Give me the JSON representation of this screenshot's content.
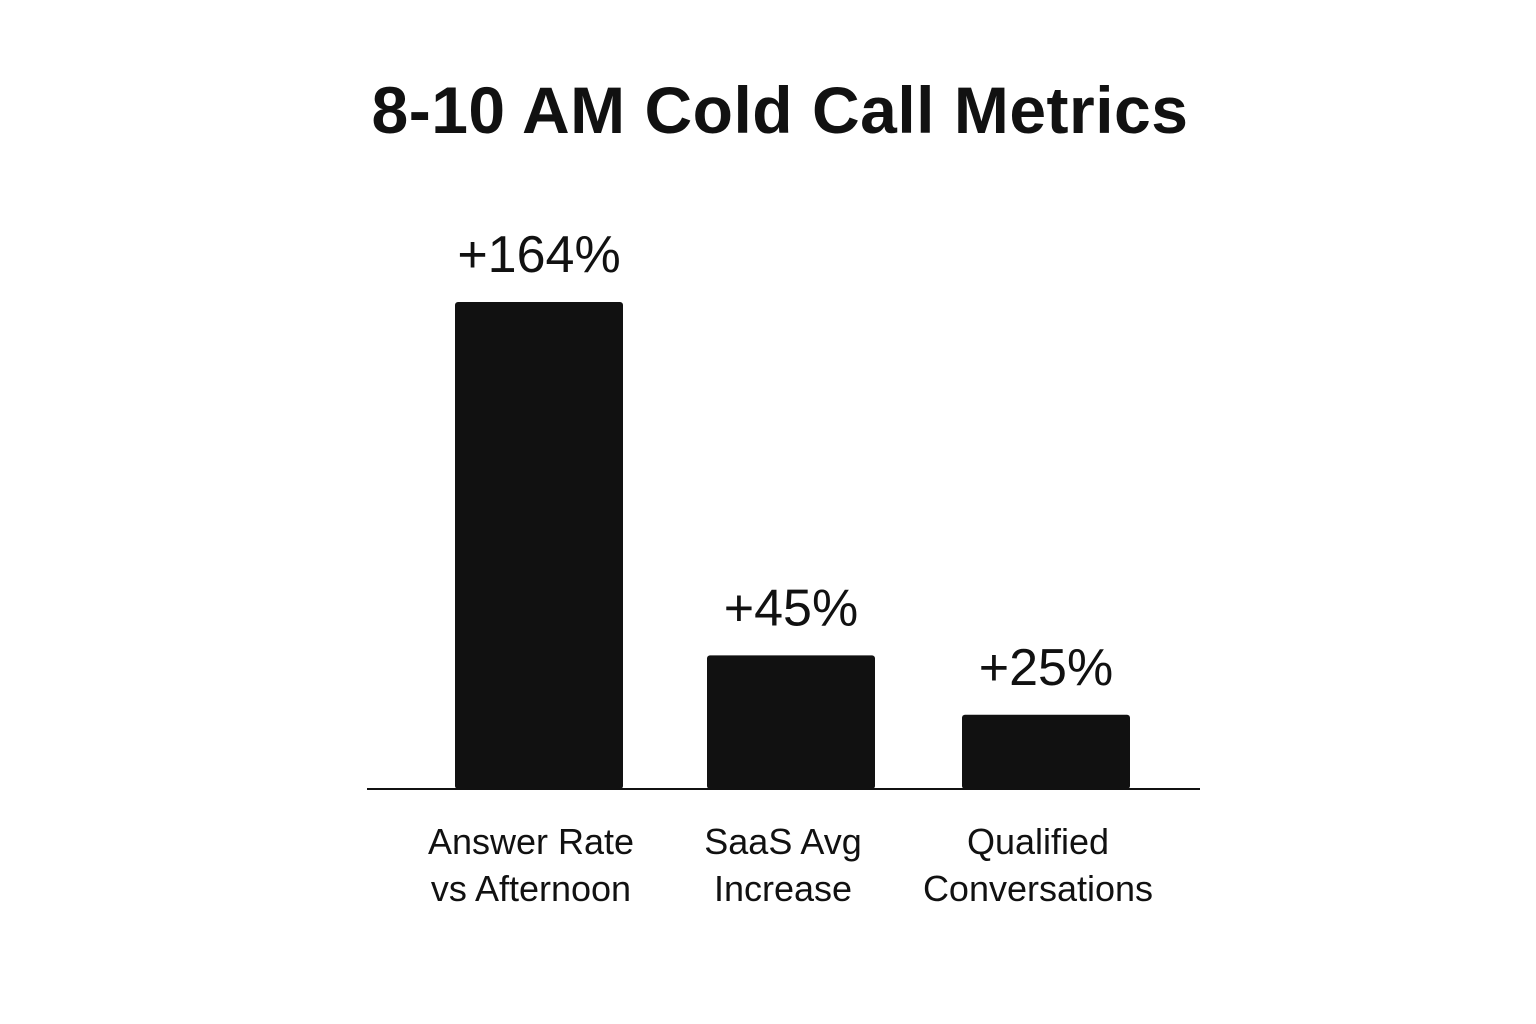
{
  "chart_data": {
    "type": "bar",
    "title": "8-10 AM Cold Call Metrics",
    "categories": [
      [
        "Answer Rate",
        "vs Afternoon"
      ],
      [
        "SaaS Avg",
        "Increase"
      ],
      [
        "Qualified",
        "Conversations"
      ]
    ],
    "values": [
      164,
      45,
      25
    ],
    "value_labels": [
      "+164%",
      "+45%",
      "+25%"
    ],
    "xlabel": "",
    "ylabel": "",
    "ylim": [
      0,
      164
    ],
    "grid": false,
    "legend": "none",
    "bar_color": "#111111",
    "axis_color": "#111111"
  }
}
